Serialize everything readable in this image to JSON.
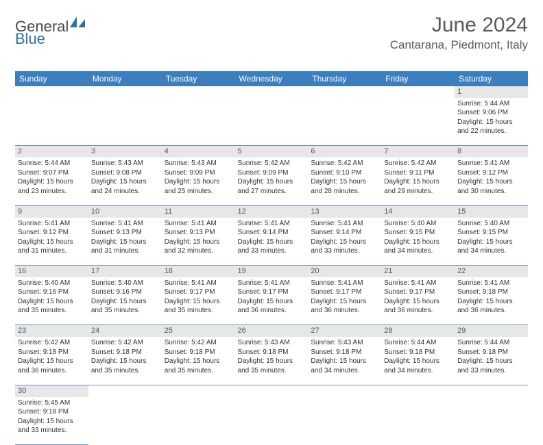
{
  "brand": {
    "part1": "General",
    "part2": "Blue"
  },
  "title": "June 2024",
  "location": "Cantarana, Piedmont, Italy",
  "colors": {
    "header_bg": "#3b7fbf",
    "header_text": "#ffffff",
    "daynum_bg": "#e7e7e7",
    "cell_border": "#6a95c1",
    "title_color": "#5a5a5a"
  },
  "days_of_week": [
    "Sunday",
    "Monday",
    "Tuesday",
    "Wednesday",
    "Thursday",
    "Friday",
    "Saturday"
  ],
  "weeks": [
    [
      null,
      null,
      null,
      null,
      null,
      null,
      {
        "n": "1",
        "sr": "Sunrise: 5:44 AM",
        "ss": "Sunset: 9:06 PM",
        "d1": "Daylight: 15 hours",
        "d2": "and 22 minutes."
      }
    ],
    [
      {
        "n": "2",
        "sr": "Sunrise: 5:44 AM",
        "ss": "Sunset: 9:07 PM",
        "d1": "Daylight: 15 hours",
        "d2": "and 23 minutes."
      },
      {
        "n": "3",
        "sr": "Sunrise: 5:43 AM",
        "ss": "Sunset: 9:08 PM",
        "d1": "Daylight: 15 hours",
        "d2": "and 24 minutes."
      },
      {
        "n": "4",
        "sr": "Sunrise: 5:43 AM",
        "ss": "Sunset: 9:09 PM",
        "d1": "Daylight: 15 hours",
        "d2": "and 25 minutes."
      },
      {
        "n": "5",
        "sr": "Sunrise: 5:42 AM",
        "ss": "Sunset: 9:09 PM",
        "d1": "Daylight: 15 hours",
        "d2": "and 27 minutes."
      },
      {
        "n": "6",
        "sr": "Sunrise: 5:42 AM",
        "ss": "Sunset: 9:10 PM",
        "d1": "Daylight: 15 hours",
        "d2": "and 28 minutes."
      },
      {
        "n": "7",
        "sr": "Sunrise: 5:42 AM",
        "ss": "Sunset: 9:11 PM",
        "d1": "Daylight: 15 hours",
        "d2": "and 29 minutes."
      },
      {
        "n": "8",
        "sr": "Sunrise: 5:41 AM",
        "ss": "Sunset: 9:12 PM",
        "d1": "Daylight: 15 hours",
        "d2": "and 30 minutes."
      }
    ],
    [
      {
        "n": "9",
        "sr": "Sunrise: 5:41 AM",
        "ss": "Sunset: 9:12 PM",
        "d1": "Daylight: 15 hours",
        "d2": "and 31 minutes."
      },
      {
        "n": "10",
        "sr": "Sunrise: 5:41 AM",
        "ss": "Sunset: 9:13 PM",
        "d1": "Daylight: 15 hours",
        "d2": "and 31 minutes."
      },
      {
        "n": "11",
        "sr": "Sunrise: 5:41 AM",
        "ss": "Sunset: 9:13 PM",
        "d1": "Daylight: 15 hours",
        "d2": "and 32 minutes."
      },
      {
        "n": "12",
        "sr": "Sunrise: 5:41 AM",
        "ss": "Sunset: 9:14 PM",
        "d1": "Daylight: 15 hours",
        "d2": "and 33 minutes."
      },
      {
        "n": "13",
        "sr": "Sunrise: 5:41 AM",
        "ss": "Sunset: 9:14 PM",
        "d1": "Daylight: 15 hours",
        "d2": "and 33 minutes."
      },
      {
        "n": "14",
        "sr": "Sunrise: 5:40 AM",
        "ss": "Sunset: 9:15 PM",
        "d1": "Daylight: 15 hours",
        "d2": "and 34 minutes."
      },
      {
        "n": "15",
        "sr": "Sunrise: 5:40 AM",
        "ss": "Sunset: 9:15 PM",
        "d1": "Daylight: 15 hours",
        "d2": "and 34 minutes."
      }
    ],
    [
      {
        "n": "16",
        "sr": "Sunrise: 5:40 AM",
        "ss": "Sunset: 9:16 PM",
        "d1": "Daylight: 15 hours",
        "d2": "and 35 minutes."
      },
      {
        "n": "17",
        "sr": "Sunrise: 5:40 AM",
        "ss": "Sunset: 9:16 PM",
        "d1": "Daylight: 15 hours",
        "d2": "and 35 minutes."
      },
      {
        "n": "18",
        "sr": "Sunrise: 5:41 AM",
        "ss": "Sunset: 9:17 PM",
        "d1": "Daylight: 15 hours",
        "d2": "and 35 minutes."
      },
      {
        "n": "19",
        "sr": "Sunrise: 5:41 AM",
        "ss": "Sunset: 9:17 PM",
        "d1": "Daylight: 15 hours",
        "d2": "and 36 minutes."
      },
      {
        "n": "20",
        "sr": "Sunrise: 5:41 AM",
        "ss": "Sunset: 9:17 PM",
        "d1": "Daylight: 15 hours",
        "d2": "and 36 minutes."
      },
      {
        "n": "21",
        "sr": "Sunrise: 5:41 AM",
        "ss": "Sunset: 9:17 PM",
        "d1": "Daylight: 15 hours",
        "d2": "and 36 minutes."
      },
      {
        "n": "22",
        "sr": "Sunrise: 5:41 AM",
        "ss": "Sunset: 9:18 PM",
        "d1": "Daylight: 15 hours",
        "d2": "and 36 minutes."
      }
    ],
    [
      {
        "n": "23",
        "sr": "Sunrise: 5:42 AM",
        "ss": "Sunset: 9:18 PM",
        "d1": "Daylight: 15 hours",
        "d2": "and 36 minutes."
      },
      {
        "n": "24",
        "sr": "Sunrise: 5:42 AM",
        "ss": "Sunset: 9:18 PM",
        "d1": "Daylight: 15 hours",
        "d2": "and 35 minutes."
      },
      {
        "n": "25",
        "sr": "Sunrise: 5:42 AM",
        "ss": "Sunset: 9:18 PM",
        "d1": "Daylight: 15 hours",
        "d2": "and 35 minutes."
      },
      {
        "n": "26",
        "sr": "Sunrise: 5:43 AM",
        "ss": "Sunset: 9:18 PM",
        "d1": "Daylight: 15 hours",
        "d2": "and 35 minutes."
      },
      {
        "n": "27",
        "sr": "Sunrise: 5:43 AM",
        "ss": "Sunset: 9:18 PM",
        "d1": "Daylight: 15 hours",
        "d2": "and 34 minutes."
      },
      {
        "n": "28",
        "sr": "Sunrise: 5:44 AM",
        "ss": "Sunset: 9:18 PM",
        "d1": "Daylight: 15 hours",
        "d2": "and 34 minutes."
      },
      {
        "n": "29",
        "sr": "Sunrise: 5:44 AM",
        "ss": "Sunset: 9:18 PM",
        "d1": "Daylight: 15 hours",
        "d2": "and 33 minutes."
      }
    ],
    [
      {
        "n": "30",
        "sr": "Sunrise: 5:45 AM",
        "ss": "Sunset: 9:18 PM",
        "d1": "Daylight: 15 hours",
        "d2": "and 33 minutes."
      },
      null,
      null,
      null,
      null,
      null,
      null
    ]
  ]
}
